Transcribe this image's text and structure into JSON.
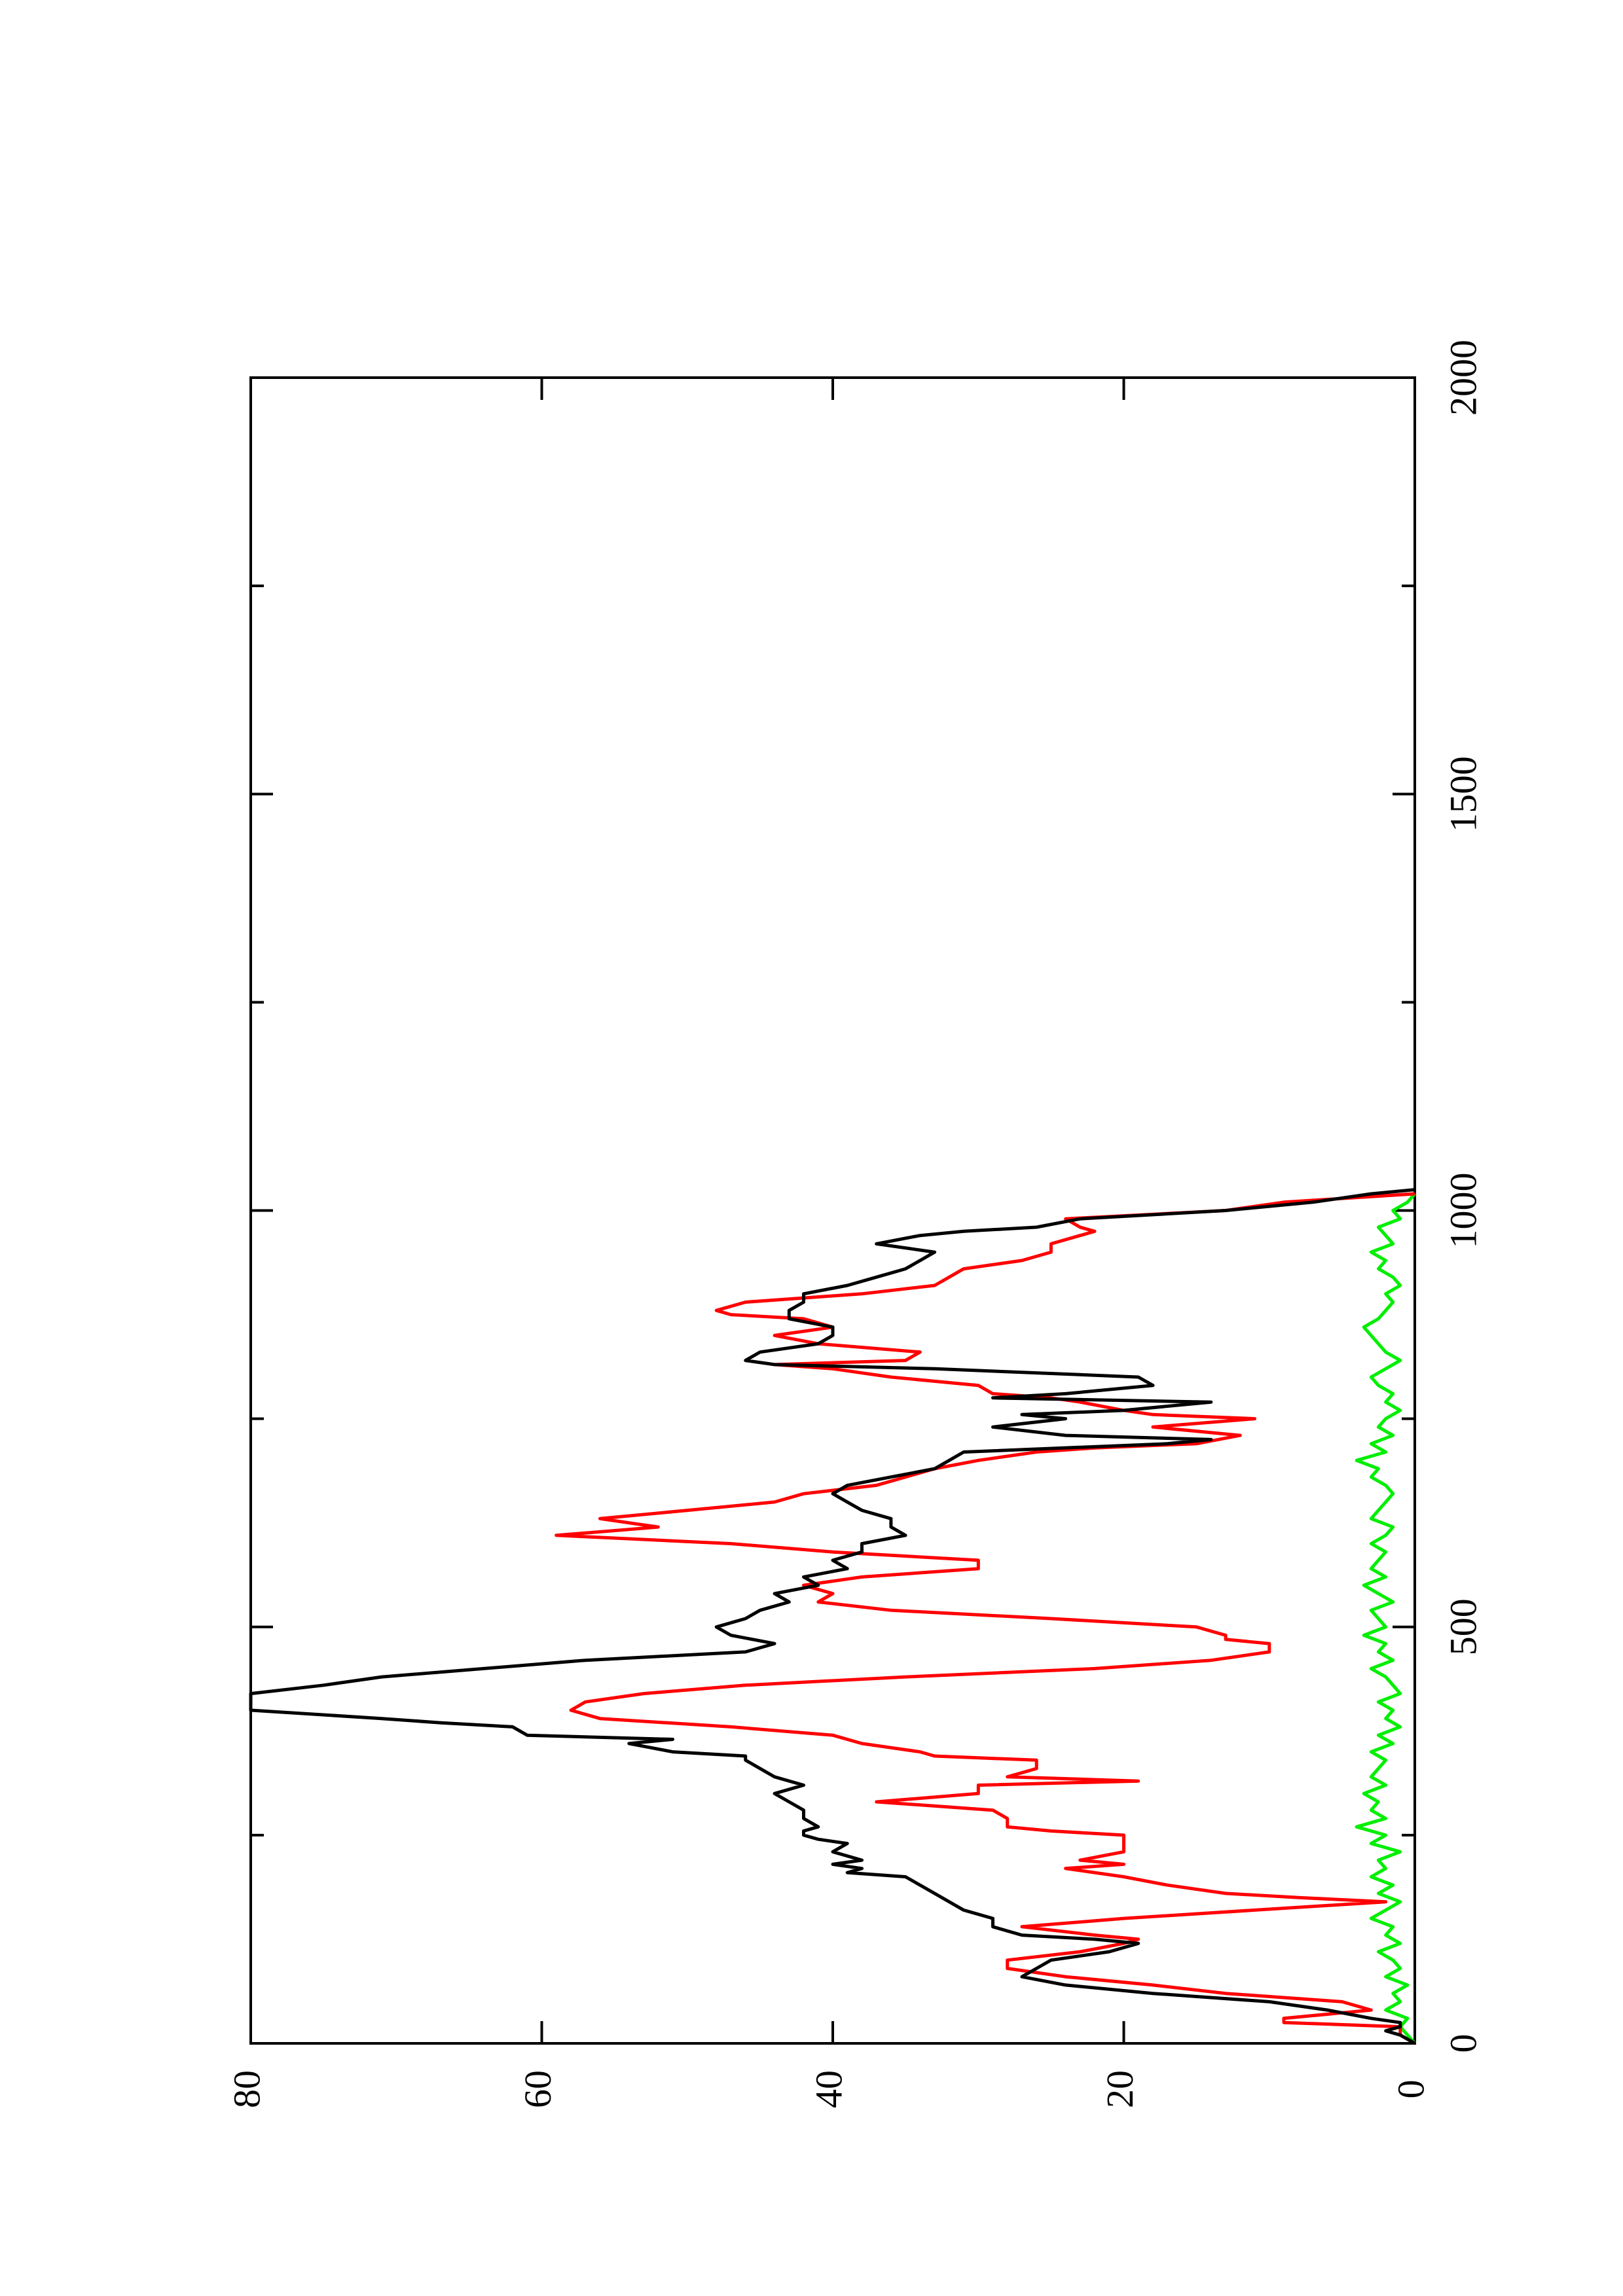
{
  "chart_data": {
    "type": "line",
    "orientation": "rotated-90-ccw",
    "title": "",
    "xlabel": "",
    "ylabel": "",
    "xlim": [
      0,
      2000
    ],
    "ylim": [
      0,
      80
    ],
    "x_ticks": [
      0,
      500,
      1000,
      1500,
      2000
    ],
    "x_minor_ticks": [
      250,
      750,
      1250,
      1750
    ],
    "y_ticks": [
      0,
      20,
      40,
      60,
      80
    ],
    "grid": false,
    "legend": "none",
    "series": [
      {
        "color": "#000000",
        "x": [
          0,
          10,
          15,
          20,
          25,
          30,
          40,
          50,
          60,
          70,
          80,
          90,
          100,
          110,
          120,
          125,
          130,
          140,
          150,
          160,
          170,
          180,
          190,
          200,
          205,
          210,
          215,
          220,
          230,
          240,
          245,
          250,
          255,
          260,
          270,
          280,
          290,
          300,
          310,
          320,
          330,
          340,
          345,
          350,
          360,
          365,
          370,
          380,
          385,
          390,
          400,
          410,
          420,
          430,
          440,
          450,
          460,
          470,
          480,
          490,
          500,
          510,
          520,
          530,
          540,
          550,
          560,
          570,
          580,
          590,
          600,
          610,
          620,
          630,
          640,
          650,
          660,
          670,
          680,
          690,
          700,
          710,
          720,
          725,
          730,
          740,
          750,
          755,
          760,
          770,
          775,
          780,
          790,
          800,
          805,
          810,
          815,
          820,
          830,
          840,
          850,
          860,
          870,
          880,
          890,
          900,
          910,
          920,
          930,
          940,
          950,
          960,
          970,
          975,
          980,
          990,
          1000,
          1010,
          1020,
          1025
        ],
        "values": [
          0,
          1,
          2,
          1,
          1,
          3,
          6,
          10,
          18,
          24,
          27,
          26,
          25,
          21,
          19,
          22,
          27,
          29,
          29,
          31,
          32,
          33,
          34,
          35,
          39,
          38,
          40,
          38,
          40,
          39,
          41,
          42,
          42,
          41,
          42,
          42,
          43,
          44,
          42,
          44,
          45,
          46,
          46,
          51,
          54,
          51,
          61,
          62,
          67,
          71,
          80,
          80,
          80,
          75,
          71,
          64,
          57,
          46,
          44,
          47,
          48,
          46,
          45,
          43,
          44,
          41,
          42,
          39,
          40,
          38,
          38,
          35,
          36,
          36,
          38,
          39,
          40,
          39,
          36,
          33,
          32,
          31,
          17,
          14,
          24,
          29,
          24,
          27,
          20,
          14,
          29,
          24,
          18,
          19,
          26,
          33,
          44,
          46,
          45,
          41,
          40,
          40,
          43,
          43,
          42,
          42,
          39,
          37,
          35,
          34,
          33,
          37,
          34,
          31,
          26,
          23,
          13,
          7,
          3,
          0
        ]
      },
      {
        "color": "#ff0000",
        "x": [
          0,
          10,
          20,
          25,
          30,
          40,
          50,
          60,
          70,
          80,
          90,
          100,
          110,
          120,
          125,
          130,
          140,
          150,
          160,
          170,
          175,
          180,
          190,
          200,
          210,
          215,
          220,
          230,
          240,
          250,
          255,
          260,
          270,
          280,
          290,
          300,
          310,
          315,
          320,
          330,
          340,
          345,
          350,
          360,
          370,
          380,
          390,
          400,
          410,
          420,
          430,
          440,
          450,
          460,
          470,
          480,
          485,
          490,
          500,
          510,
          520,
          530,
          540,
          550,
          555,
          560,
          570,
          580,
          590,
          600,
          610,
          620,
          630,
          640,
          650,
          660,
          670,
          680,
          690,
          700,
          710,
          715,
          720,
          730,
          740,
          750,
          755,
          760,
          770,
          775,
          780,
          790,
          800,
          810,
          815,
          820,
          830,
          840,
          850,
          860,
          870,
          875,
          880,
          890,
          900,
          910,
          920,
          930,
          940,
          950,
          960,
          970,
          975,
          980,
          990,
          1000,
          1010,
          1020
        ],
        "values": [
          0,
          1,
          1,
          9,
          9,
          3,
          5,
          13,
          18,
          24,
          28,
          28,
          23,
          20,
          19,
          22,
          27,
          20,
          11,
          2,
          8,
          13,
          17,
          20,
          24,
          20,
          23,
          20,
          20,
          20,
          25,
          28,
          28,
          29,
          37,
          30,
          30,
          19,
          28,
          26,
          26,
          33,
          34,
          38,
          40,
          47,
          56,
          58,
          57,
          53,
          46,
          35,
          22,
          14,
          10,
          10,
          13,
          13,
          15,
          25,
          36,
          41,
          40,
          42,
          40,
          38,
          30,
          30,
          40,
          47,
          59,
          52,
          56,
          50,
          44,
          42,
          37,
          35,
          33,
          30,
          26,
          22,
          15,
          12,
          18,
          11,
          18,
          20,
          23,
          25,
          29,
          30,
          36,
          40,
          44,
          35,
          34,
          41,
          44,
          40,
          42,
          47,
          48,
          46,
          38,
          33,
          32,
          31,
          27,
          25,
          25,
          23,
          22,
          23,
          24,
          13,
          9,
          0
        ]
      },
      {
        "color": "#00ee00",
        "x": [
          0,
          10,
          20,
          30,
          40,
          50,
          60,
          70,
          80,
          90,
          100,
          110,
          120,
          130,
          140,
          150,
          160,
          170,
          180,
          190,
          200,
          210,
          220,
          230,
          240,
          250,
          260,
          270,
          280,
          290,
          300,
          310,
          320,
          330,
          340,
          350,
          360,
          370,
          380,
          390,
          400,
          410,
          420,
          430,
          440,
          450,
          460,
          470,
          480,
          490,
          500,
          510,
          520,
          530,
          540,
          550,
          560,
          570,
          580,
          590,
          600,
          610,
          620,
          630,
          640,
          650,
          660,
          670,
          680,
          690,
          700,
          710,
          720,
          730,
          740,
          750,
          760,
          770,
          780,
          790,
          800,
          810,
          820,
          830,
          840,
          850,
          860,
          870,
          880,
          890,
          900,
          910,
          920,
          930,
          940,
          950,
          960,
          970,
          980,
          990,
          1000,
          1010,
          1020
        ],
        "values": [
          0,
          0.5,
          1,
          0.5,
          2,
          1,
          1.5,
          0.5,
          2,
          1,
          1.5,
          2.5,
          1,
          2,
          1.5,
          3,
          2,
          1,
          2.5,
          1.5,
          3,
          2,
          2.5,
          1,
          3,
          2,
          4,
          2,
          3,
          2.5,
          3.5,
          2,
          3,
          2.5,
          2,
          3,
          1.5,
          2.5,
          1,
          2,
          1.5,
          2.5,
          1,
          1.5,
          2,
          3,
          1.5,
          2.5,
          2,
          3.5,
          2,
          2.5,
          3,
          1.5,
          2.5,
          3.5,
          2,
          3,
          2.5,
          2,
          3,
          2,
          1.5,
          3,
          2.5,
          2,
          1.5,
          2,
          3,
          2.5,
          4,
          2,
          3,
          1.5,
          2.5,
          2,
          1,
          2,
          1.5,
          2.5,
          3,
          2,
          1,
          2,
          2.5,
          3,
          3.5,
          2.5,
          2,
          1.5,
          2,
          1,
          1.5,
          2.5,
          2,
          3,
          1.5,
          2,
          2.5,
          1,
          1.5,
          0.5,
          0
        ]
      }
    ]
  }
}
